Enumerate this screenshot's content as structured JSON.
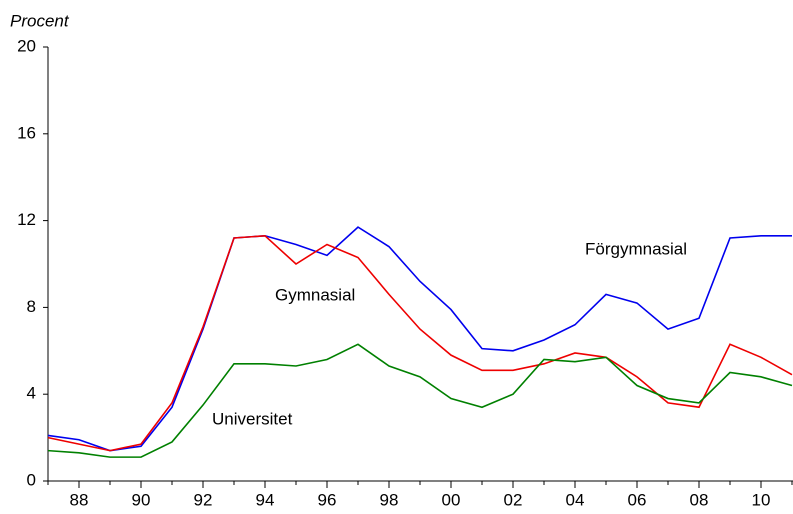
{
  "chart_data": {
    "type": "line",
    "y_label": "Procent",
    "categories": [
      null,
      "88",
      null,
      "90",
      null,
      "92",
      null,
      "94",
      null,
      "96",
      null,
      "98",
      null,
      "00",
      null,
      "02",
      null,
      "04",
      null,
      "06",
      null,
      "08",
      null,
      "10",
      null
    ],
    "series": [
      {
        "name": "Förgymnasial",
        "color": "#0000ee",
        "values": [
          2.1,
          1.9,
          1.4,
          1.6,
          3.4,
          7.0,
          11.2,
          11.3,
          10.9,
          10.4,
          11.7,
          10.8,
          9.2,
          7.9,
          6.1,
          6.0,
          6.5,
          7.2,
          8.6,
          8.2,
          7.0,
          7.5,
          11.2,
          11.3,
          11.3
        ]
      },
      {
        "name": "Gymnasial",
        "color": "#ee0000",
        "values": [
          2.0,
          1.7,
          1.4,
          1.7,
          3.6,
          7.1,
          11.2,
          11.3,
          10.0,
          10.9,
          10.3,
          8.6,
          7.0,
          5.8,
          5.1,
          5.1,
          5.4,
          5.9,
          5.7,
          4.8,
          3.6,
          3.4,
          6.3,
          5.7,
          4.9
        ]
      },
      {
        "name": "Universitet",
        "color": "#008000",
        "values": [
          1.4,
          1.3,
          1.1,
          1.1,
          1.8,
          3.5,
          5.4,
          5.4,
          5.3,
          5.6,
          6.3,
          5.3,
          4.8,
          3.8,
          3.4,
          4.0,
          5.6,
          5.5,
          5.7,
          4.4,
          3.8,
          3.6,
          5.0,
          4.8,
          4.4
        ]
      }
    ],
    "ylim": [
      0,
      20
    ],
    "yticks": [
      0,
      4,
      8,
      12,
      16,
      20
    ],
    "grid": false
  }
}
